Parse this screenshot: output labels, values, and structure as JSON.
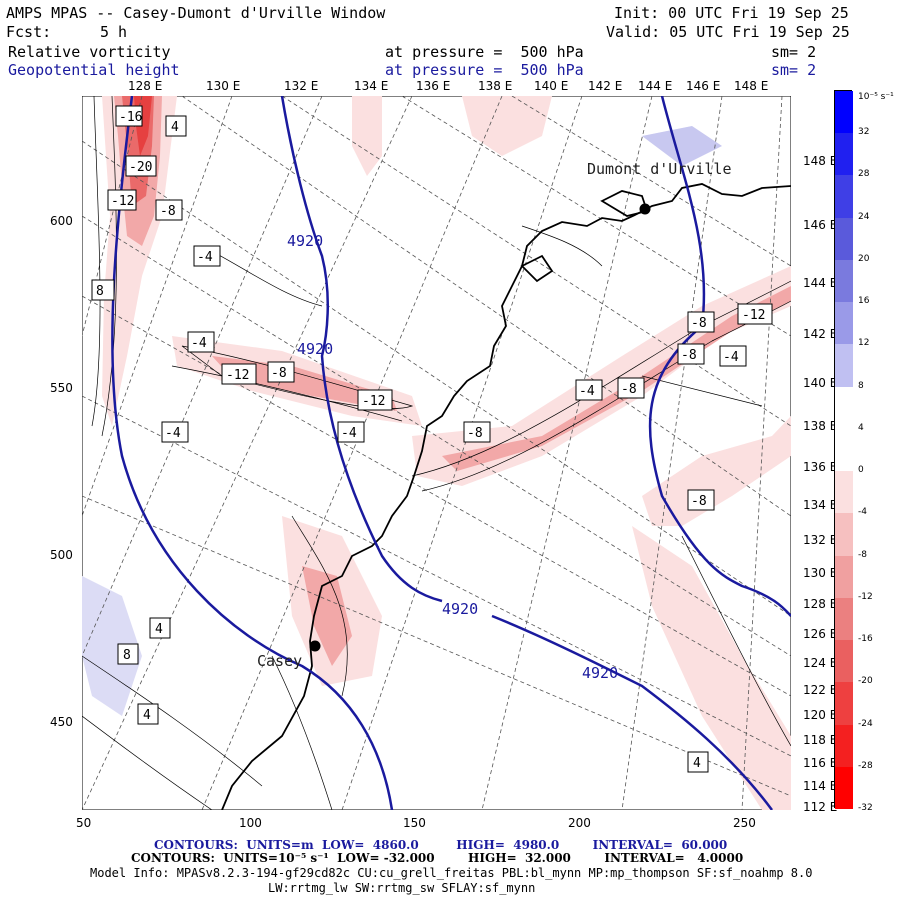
{
  "header": {
    "title": "AMPS MPAS -- Casey-Dumont d'Urville Window",
    "init": "Init: 00 UTC Fri 19 Sep 25",
    "fcst_label": "Fcst:",
    "fcst_value": "5 h",
    "valid": "Valid: 05 UTC Fri 19 Sep 25",
    "field1": "Relative vorticity",
    "field1_level": "at pressure =  500 hPa",
    "field1_sm": "sm= 2",
    "field2": "Geopotential height",
    "field2_level": "at pressure =  500 hPa",
    "field2_sm": "sm= 2"
  },
  "top_lon_labels": [
    "128 E",
    "130 E",
    "132 E",
    "134 E",
    "136 E",
    "138 E",
    "140 E",
    "142 E",
    "144 E",
    "146 E",
    "148 E"
  ],
  "right_lon_labels": [
    "148 E",
    "146 E",
    "144 E",
    "142 E",
    "140 E",
    "138 E",
    "136 E",
    "134 E",
    "132 E",
    "130 E",
    "128 E",
    "126 E",
    "124 E",
    "122 E",
    "120 E",
    "118 E",
    "116 E",
    "114 E",
    "112 E"
  ],
  "y_axis": [
    "600",
    "550",
    "500",
    "450"
  ],
  "x_axis": [
    "50",
    "100",
    "150",
    "200",
    "250"
  ],
  "places": [
    {
      "name": "Dumont d'Urville"
    },
    {
      "name": "Casey"
    }
  ],
  "contour_labels": {
    "height": [
      "4920",
      "4920",
      "4920",
      "4920"
    ],
    "vorticity": [
      "-16",
      "-20",
      "-12",
      "-8",
      "-4",
      "4",
      "8",
      "-4",
      "-4",
      "-12",
      "-8",
      "-12",
      "-4",
      "-4",
      "-8",
      "-8",
      "-8",
      "-12",
      "-8",
      "-4",
      "-8",
      "4",
      "8",
      "4",
      "4"
    ]
  },
  "colorbar": {
    "unit": "10⁻⁵ s⁻¹",
    "labels": [
      "32",
      "28",
      "24",
      "20",
      "16",
      "12",
      "8",
      "4",
      "0",
      "-4",
      "-8",
      "-12",
      "-16",
      "-20",
      "-24",
      "-28",
      "-32"
    ],
    "colors": [
      "#0000ff",
      "#2020f0",
      "#3f3fe6",
      "#5a5adb",
      "#7a7ade",
      "#9a9ae8",
      "#c0c0f2",
      "#ffffff",
      "#ffffff",
      "#fbe0e0",
      "#f6c0c0",
      "#f0a0a0",
      "#eb8080",
      "#ea6060",
      "#ee4040",
      "#f42020",
      "#ff0000"
    ]
  },
  "footer": {
    "line1": "CONTOURS:  UNITS=m  LOW=  4860.0         HIGH=  4980.0        INTERVAL=  60.000",
    "line2": "CONTOURS:  UNITS=10⁻⁵ s⁻¹  LOW= -32.000        HIGH=  32.000        INTERVAL=   4.0000",
    "line3": "Model Info: MPASv8.2.3-194-gf29cd82c CU:cu_grell_freitas PBL:bl_mynn MP:mp_thompson SF:sf_noahmp 8.0",
    "line4": "LW:rrtmg_lw SW:rrtmg_sw SFLAY:sf_mynn"
  }
}
